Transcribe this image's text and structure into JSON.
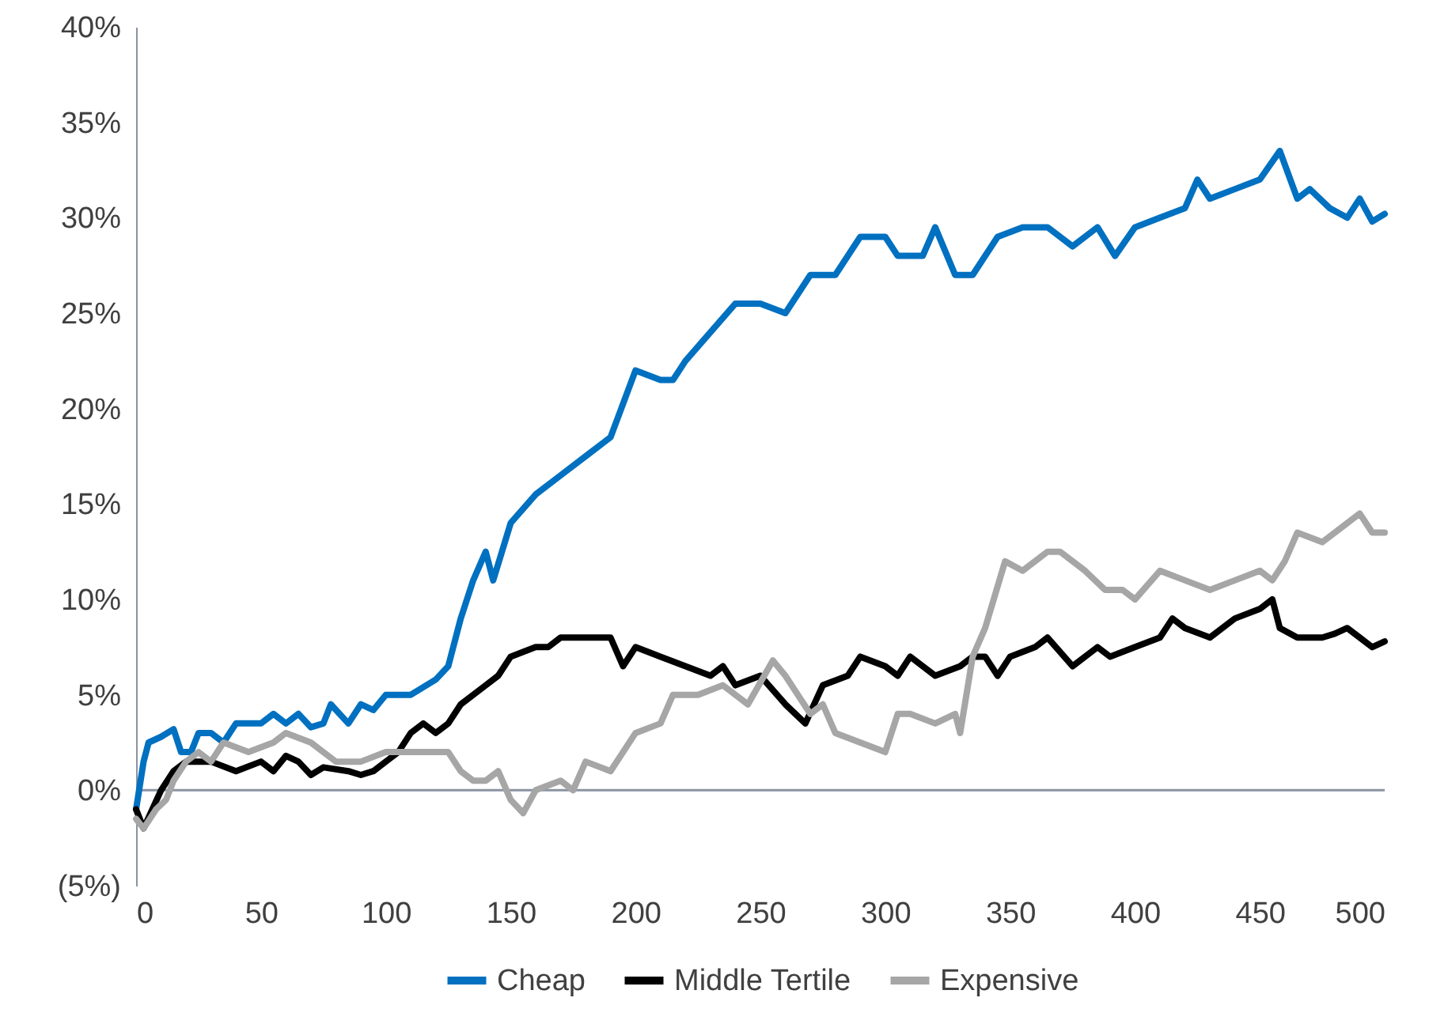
{
  "chart_data": {
    "type": "line",
    "series": [
      {
        "name": "Cheap",
        "color": "#0070c0",
        "x": [
          0,
          3,
          5,
          10,
          15,
          18,
          22,
          25,
          30,
          35,
          40,
          50,
          55,
          60,
          65,
          70,
          75,
          78,
          85,
          90,
          95,
          100,
          110,
          120,
          125,
          130,
          135,
          140,
          143,
          150,
          160,
          170,
          180,
          190,
          200,
          210,
          215,
          220,
          230,
          240,
          250,
          260,
          270,
          280,
          290,
          300,
          305,
          315,
          320,
          328,
          335,
          345,
          355,
          365,
          375,
          385,
          392,
          400,
          410,
          420,
          425,
          430,
          440,
          450,
          458,
          465,
          470,
          478,
          485,
          490,
          495,
          500
        ],
        "values": [
          -1,
          1.5,
          2.5,
          2.8,
          3.2,
          2,
          2,
          3,
          3,
          2.5,
          3.5,
          3.5,
          4,
          3.5,
          4,
          3.3,
          3.5,
          4.5,
          3.5,
          4.5,
          4.2,
          5,
          5,
          5.8,
          6.5,
          9,
          11,
          12.5,
          11,
          14,
          15.5,
          16.5,
          17.5,
          18.5,
          22,
          21.5,
          21.5,
          22.5,
          24,
          25.5,
          25.5,
          25,
          27,
          27,
          29,
          29,
          28,
          28,
          29.5,
          27,
          27,
          29,
          29.5,
          29.5,
          28.5,
          29.5,
          28,
          29.5,
          30,
          30.5,
          32,
          31,
          31.5,
          32,
          33.5,
          31,
          31.5,
          30.5,
          30,
          31,
          29.8,
          30.2
        ]
      },
      {
        "name": "Middle Tertile",
        "color": "#000000",
        "x": [
          0,
          3,
          10,
          15,
          20,
          30,
          40,
          50,
          55,
          60,
          65,
          70,
          75,
          85,
          90,
          95,
          100,
          105,
          110,
          115,
          120,
          125,
          130,
          140,
          145,
          150,
          160,
          165,
          170,
          180,
          190,
          195,
          200,
          210,
          220,
          230,
          235,
          240,
          250,
          260,
          268,
          275,
          285,
          290,
          300,
          305,
          310,
          320,
          330,
          335,
          340,
          345,
          350,
          360,
          365,
          375,
          385,
          390,
          400,
          410,
          415,
          420,
          430,
          440,
          450,
          455,
          458,
          465,
          475,
          480,
          485,
          490,
          495,
          500
        ],
        "values": [
          -1,
          -2,
          0,
          1,
          1.5,
          1.5,
          1,
          1.5,
          1,
          1.8,
          1.5,
          0.8,
          1.2,
          1,
          0.8,
          1,
          1.5,
          2,
          3,
          3.5,
          3,
          3.5,
          4.5,
          5.5,
          6,
          7,
          7.5,
          7.5,
          8,
          8,
          8,
          6.5,
          7.5,
          7,
          6.5,
          6,
          6.5,
          5.5,
          6,
          4.5,
          3.5,
          5.5,
          6,
          7,
          6.5,
          6,
          7,
          6,
          6.5,
          7,
          7,
          6,
          7,
          7.5,
          8,
          6.5,
          7.5,
          7,
          7.5,
          8,
          9,
          8.5,
          8,
          9,
          9.5,
          10,
          8.5,
          8,
          8,
          8.2,
          8.5,
          8,
          7.5,
          7.8
        ]
      },
      {
        "name": "Expensive",
        "color": "#a6a6a6",
        "x": [
          0,
          3,
          8,
          12,
          15,
          20,
          25,
          30,
          35,
          45,
          55,
          60,
          70,
          75,
          80,
          90,
          100,
          110,
          120,
          125,
          130,
          135,
          140,
          145,
          150,
          155,
          160,
          170,
          175,
          180,
          190,
          200,
          210,
          215,
          225,
          235,
          245,
          255,
          260,
          270,
          275,
          280,
          290,
          300,
          305,
          310,
          320,
          328,
          330,
          335,
          340,
          348,
          355,
          365,
          370,
          380,
          388,
          395,
          400,
          410,
          420,
          430,
          440,
          450,
          455,
          460,
          465,
          475,
          485,
          490,
          495,
          500
        ],
        "values": [
          -1.5,
          -2,
          -1,
          -0.5,
          0.5,
          1.5,
          2,
          1.5,
          2.5,
          2,
          2.5,
          3,
          2.5,
          2,
          1.5,
          1.5,
          2,
          2,
          2,
          2,
          1,
          0.5,
          0.5,
          1,
          -0.5,
          -1.2,
          0,
          0.5,
          0,
          1.5,
          1,
          3,
          3.5,
          5,
          5,
          5.5,
          4.5,
          6.8,
          6,
          4,
          4.5,
          3,
          2.5,
          2,
          4,
          4,
          3.5,
          4,
          3,
          7,
          8.5,
          12,
          11.5,
          12.5,
          12.5,
          11.5,
          10.5,
          10.5,
          10,
          11.5,
          11,
          10.5,
          11,
          11.5,
          11,
          12,
          13.5,
          13,
          14,
          14.5,
          13.5,
          13.5
        ]
      }
    ],
    "xlim": [
      0,
      500
    ],
    "xticks": [
      0,
      50,
      100,
      150,
      200,
      250,
      300,
      350,
      400,
      450,
      500
    ],
    "ylim": [
      -5,
      40
    ],
    "yticks": [
      {
        "value": -5,
        "label": "(5%)"
      },
      {
        "value": 0,
        "label": "0%"
      },
      {
        "value": 5,
        "label": "5%"
      },
      {
        "value": 10,
        "label": "10%"
      },
      {
        "value": 15,
        "label": "15%"
      },
      {
        "value": 20,
        "label": "20%"
      },
      {
        "value": 25,
        "label": "25%"
      },
      {
        "value": 30,
        "label": "30%"
      },
      {
        "value": 35,
        "label": "35%"
      },
      {
        "value": 40,
        "label": "40%"
      }
    ],
    "legend": "bottom",
    "marker": "none",
    "line_style": "solid"
  }
}
